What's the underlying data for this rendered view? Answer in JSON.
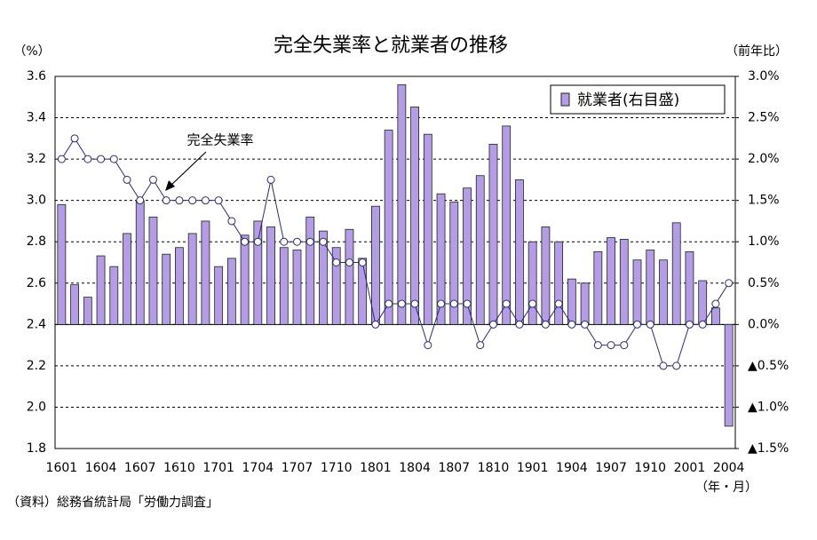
{
  "chart_data": {
    "type": "bar_line",
    "title": "完全失業率と就業者の推移",
    "y_unit_label": "（%）",
    "y2_unit_label": "（前年比）",
    "x_unit_label": "（年・月）",
    "source": "（資料）総務省統計局「労働力調査」",
    "categories": [
      "1601",
      null,
      null,
      "1604",
      null,
      null,
      "1607",
      null,
      null,
      "1610",
      null,
      null,
      "1701",
      null,
      null,
      "1704",
      null,
      null,
      "1707",
      null,
      null,
      "1710",
      null,
      null,
      "1801",
      null,
      null,
      "1804",
      null,
      null,
      "1807",
      null,
      null,
      "1810",
      null,
      null,
      "1901",
      null,
      null,
      "1904",
      null,
      null,
      "1907",
      null,
      null,
      "1910",
      null,
      null,
      "2001",
      null,
      null,
      "2004"
    ],
    "ylim": [
      1.8,
      3.6
    ],
    "yticks": [
      1.8,
      {
        "value": 2.0,
        "label": "2.0"
      },
      2.2,
      2.4,
      2.6,
      2.8,
      {
        "value": 3.0,
        "label": "3.0"
      },
      3.2,
      3.4,
      3.6
    ],
    "y2lim": [
      -1.5,
      3.0
    ],
    "y2ticks": [
      {
        "value": -1.5,
        "label": "▲1.5%"
      },
      {
        "value": -1.0,
        "label": "▲1.0%"
      },
      {
        "value": -0.5,
        "label": "▲0.5%"
      },
      {
        "value": 0,
        "label": "0.0%"
      },
      {
        "value": 0.5,
        "label": "0.5%"
      },
      {
        "value": 1.0,
        "label": "1.0%"
      },
      {
        "value": 1.5,
        "label": "1.5%"
      },
      {
        "value": 2.0,
        "label": "2.0%"
      },
      {
        "value": 2.5,
        "label": "2.5%"
      },
      {
        "value": 3.0,
        "label": "3.0%"
      }
    ],
    "grid": true,
    "legend": "upper right",
    "series": [
      {
        "name": "就業者(右目盛)",
        "type": "bar",
        "axis": "y2",
        "color": "#b59de6",
        "values": [
          1.45,
          0.48,
          0.33,
          0.83,
          0.7,
          1.1,
          1.5,
          1.3,
          0.85,
          0.93,
          1.1,
          1.25,
          0.7,
          0.8,
          1.08,
          1.25,
          1.18,
          0.93,
          0.9,
          1.3,
          1.13,
          0.93,
          1.15,
          0.8,
          1.43,
          2.35,
          2.9,
          2.63,
          2.3,
          1.58,
          1.48,
          1.65,
          1.8,
          2.18,
          2.4,
          1.75,
          1.0,
          1.18,
          1.0,
          0.55,
          0.5,
          0.88,
          1.05,
          1.03,
          0.78,
          0.9,
          0.78,
          1.23,
          0.88,
          0.53,
          0.2,
          -1.23
        ]
      },
      {
        "name": "完全失業率",
        "type": "line",
        "color": "#2b2b7a",
        "values": [
          3.2,
          3.3,
          3.2,
          3.2,
          3.2,
          3.1,
          3.0,
          3.1,
          3.0,
          3.0,
          3.0,
          3.0,
          3.0,
          2.9,
          2.8,
          2.8,
          3.1,
          2.8,
          2.8,
          2.8,
          2.8,
          2.7,
          2.7,
          2.7,
          2.4,
          2.5,
          2.5,
          2.5,
          2.3,
          2.5,
          2.5,
          2.5,
          2.3,
          2.4,
          2.5,
          2.4,
          2.5,
          2.4,
          2.5,
          2.4,
          2.4,
          2.3,
          2.3,
          2.3,
          2.4,
          2.4,
          2.2,
          2.2,
          2.4,
          2.4,
          2.5,
          2.6
        ]
      }
    ]
  }
}
